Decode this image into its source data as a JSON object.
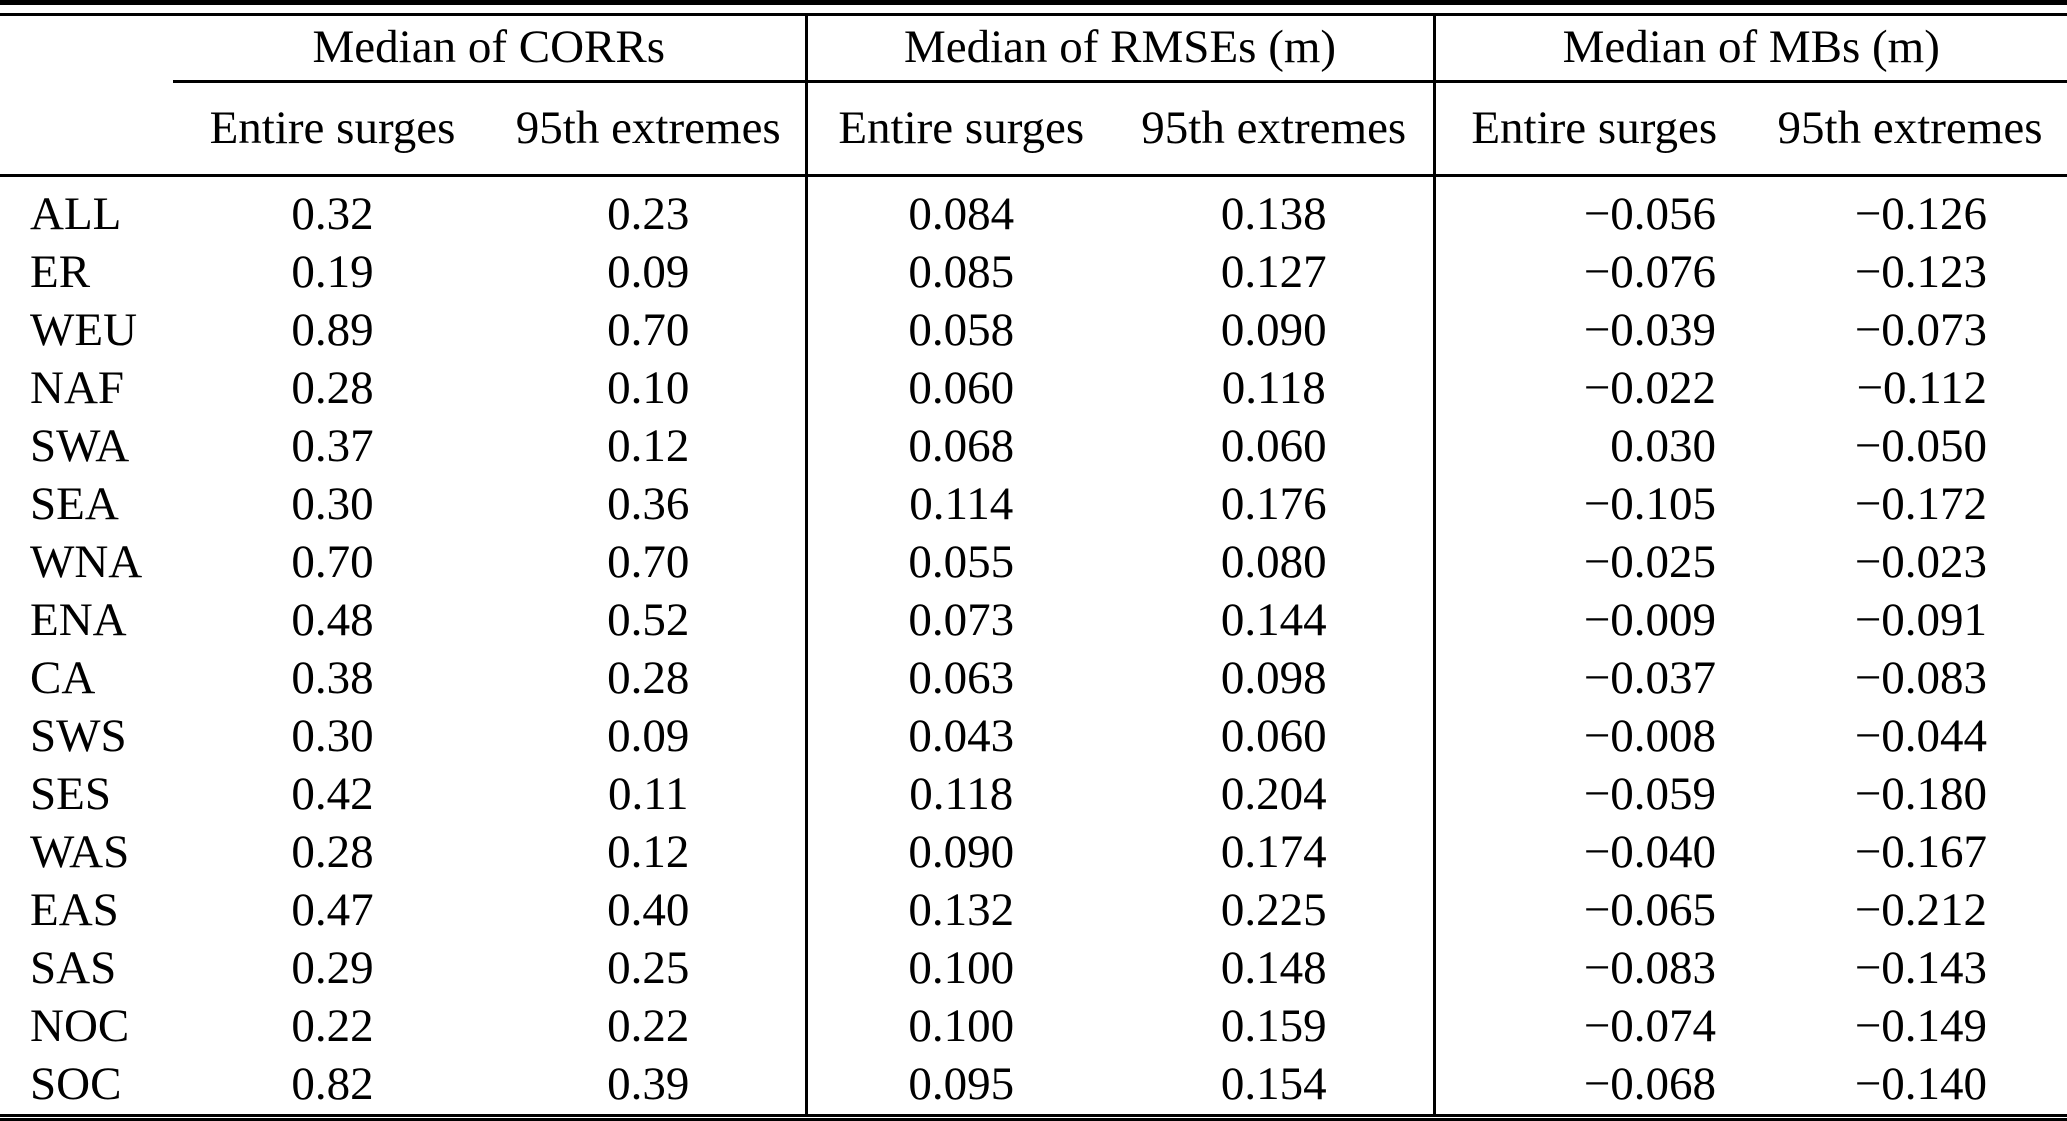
{
  "table": {
    "groups": [
      "Median of CORRs",
      "Median of RMSEs (m)",
      "Median of MBs (m)"
    ],
    "sub_columns": [
      "Entire surges",
      "95th extremes"
    ],
    "rows": [
      {
        "label": "ALL",
        "values": [
          "0.32",
          "0.23",
          "0.084",
          "0.138",
          "−0.056",
          "−0.126"
        ]
      },
      {
        "label": "ER",
        "values": [
          "0.19",
          "0.09",
          "0.085",
          "0.127",
          "−0.076",
          "−0.123"
        ]
      },
      {
        "label": "WEU",
        "values": [
          "0.89",
          "0.70",
          "0.058",
          "0.090",
          "−0.039",
          "−0.073"
        ]
      },
      {
        "label": "NAF",
        "values": [
          "0.28",
          "0.10",
          "0.060",
          "0.118",
          "−0.022",
          "−0.112"
        ]
      },
      {
        "label": "SWA",
        "values": [
          "0.37",
          "0.12",
          "0.068",
          "0.060",
          "0.030",
          "−0.050"
        ]
      },
      {
        "label": "SEA",
        "values": [
          "0.30",
          "0.36",
          "0.114",
          "0.176",
          "−0.105",
          "−0.172"
        ]
      },
      {
        "label": "WNA",
        "values": [
          "0.70",
          "0.70",
          "0.055",
          "0.080",
          "−0.025",
          "−0.023"
        ]
      },
      {
        "label": "ENA",
        "values": [
          "0.48",
          "0.52",
          "0.073",
          "0.144",
          "−0.009",
          "−0.091"
        ]
      },
      {
        "label": "CA",
        "values": [
          "0.38",
          "0.28",
          "0.063",
          "0.098",
          "−0.037",
          "−0.083"
        ]
      },
      {
        "label": "SWS",
        "values": [
          "0.30",
          "0.09",
          "0.043",
          "0.060",
          "−0.008",
          "−0.044"
        ]
      },
      {
        "label": "SES",
        "values": [
          "0.42",
          "0.11",
          "0.118",
          "0.204",
          "−0.059",
          "−0.180"
        ]
      },
      {
        "label": "WAS",
        "values": [
          "0.28",
          "0.12",
          "0.090",
          "0.174",
          "−0.040",
          "−0.167"
        ]
      },
      {
        "label": "EAS",
        "values": [
          "0.47",
          "0.40",
          "0.132",
          "0.225",
          "−0.065",
          "−0.212"
        ]
      },
      {
        "label": "SAS",
        "values": [
          "0.29",
          "0.25",
          "0.100",
          "0.148",
          "−0.083",
          "−0.143"
        ]
      },
      {
        "label": "NOC",
        "values": [
          "0.22",
          "0.22",
          "0.100",
          "0.159",
          "−0.074",
          "−0.149"
        ]
      },
      {
        "label": "SOC",
        "values": [
          "0.82",
          "0.39",
          "0.095",
          "0.154",
          "−0.068",
          "−0.140"
        ]
      }
    ]
  }
}
